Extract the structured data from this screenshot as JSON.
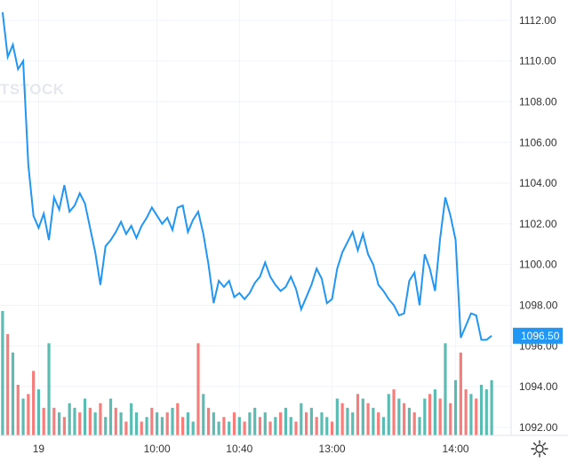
{
  "watermark": "TSTOCK",
  "colors": {
    "line": "#2196f3",
    "volume_up": "#26a69a",
    "volume_down": "#ef5350",
    "grid": "#f0f3fa",
    "axis_text": "#333333",
    "last_price_bg": "#2196f3"
  },
  "icons": {
    "settings": "gear-icon"
  },
  "chart_data": {
    "type": "line",
    "title": "",
    "xlabel": "",
    "ylabel": "",
    "ylim": [
      1091.6,
      1113.0
    ],
    "y_ticks": [
      "1092.00",
      "1094.00",
      "1096.00",
      "1098.00",
      "1100.00",
      "1102.00",
      "1104.00",
      "1106.00",
      "1108.00",
      "1110.00",
      "1112.00"
    ],
    "x_ticks": [
      "19",
      "10:00",
      "10:40",
      "13:00",
      "14:00"
    ],
    "x_tick_index": [
      7,
      30,
      46,
      64,
      88
    ],
    "last_price": 1096.5,
    "grid": true,
    "series": [
      {
        "values": [
          1112.4,
          1110.2,
          1110.8,
          1109.6,
          1110.0,
          1104.9,
          1102.4,
          1101.8,
          1102.5,
          1101.2,
          1103.3,
          1102.7,
          1103.9,
          1102.6,
          1102.9,
          1103.5,
          1103.0,
          1101.8,
          1100.6,
          1099.0,
          1100.9,
          1101.2,
          1101.6,
          1102.1,
          1101.5,
          1101.9,
          1101.3,
          1101.9,
          1102.3,
          1102.8,
          1102.4,
          1102.0,
          1102.3,
          1101.7,
          1102.8,
          1102.9,
          1101.6,
          1102.2,
          1102.6,
          1101.5,
          1100.0,
          1098.1,
          1099.2,
          1098.9,
          1099.2,
          1098.4,
          1098.6,
          1098.3,
          1098.6,
          1099.1,
          1099.4,
          1100.1,
          1099.4,
          1099.0,
          1098.7,
          1098.9,
          1099.4,
          1098.8,
          1097.8,
          1098.4,
          1099.0,
          1099.8,
          1099.3,
          1098.1,
          1098.3,
          1099.8,
          1100.6,
          1101.1,
          1101.6,
          1100.7,
          1101.5,
          1100.5,
          1100.0,
          1099.0,
          1098.7,
          1098.3,
          1098.0,
          1097.5,
          1097.6,
          1099.2,
          1099.6,
          1098.0,
          1100.5,
          1099.8,
          1098.7,
          1101.3,
          1103.3,
          1102.4,
          1101.2,
          1096.4,
          1097.0,
          1097.6,
          1097.5,
          1096.3,
          1096.3,
          1096.5
        ],
        "volumes": [
          27,
          22,
          18,
          11,
          8,
          9,
          14,
          10,
          6,
          20,
          6,
          5,
          4,
          7,
          6,
          5,
          8,
          6,
          5,
          7,
          4,
          8,
          6,
          5,
          3,
          7,
          5,
          3,
          4,
          6,
          5,
          4,
          5,
          6,
          7,
          4,
          5,
          3,
          20,
          9,
          6,
          5,
          3,
          4,
          3,
          5,
          4,
          3,
          5,
          6,
          4,
          5,
          3,
          4,
          5,
          6,
          4,
          3,
          7,
          5,
          6,
          4,
          5,
          4,
          3,
          8,
          7,
          6,
          5,
          9,
          8,
          7,
          6,
          5,
          4,
          9,
          10,
          8,
          7,
          6,
          5,
          4,
          8,
          9,
          10,
          8,
          20,
          7,
          12,
          18,
          10,
          9,
          8,
          11,
          10,
          12
        ],
        "vol_up": [
          1,
          0,
          1,
          0,
          1,
          0,
          0,
          1,
          0,
          1,
          0,
          1,
          0,
          1,
          1,
          0,
          1,
          0,
          1,
          0,
          1,
          1,
          0,
          1,
          0,
          1,
          1,
          0,
          1,
          0,
          1,
          1,
          0,
          1,
          0,
          0,
          1,
          1,
          0,
          1,
          0,
          1,
          1,
          0,
          1,
          0,
          1,
          0,
          1,
          1,
          0,
          1,
          0,
          1,
          0,
          1,
          1,
          0,
          1,
          0,
          1,
          0,
          1,
          1,
          0,
          1,
          0,
          1,
          1,
          0,
          1,
          0,
          1,
          0,
          1,
          1,
          0,
          1,
          0,
          1,
          0,
          1,
          1,
          0,
          1,
          0,
          1,
          0,
          1,
          0,
          0,
          1,
          0,
          1,
          1,
          1
        ]
      }
    ]
  }
}
